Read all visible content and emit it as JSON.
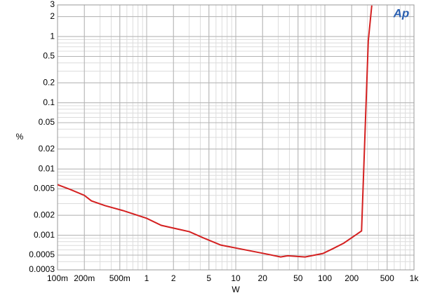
{
  "chart_data": {
    "type": "line",
    "logo": "Ap",
    "x_label": "W",
    "y_label": "%",
    "xscale": "log",
    "yscale": "log",
    "grid": true,
    "xlim": [
      0.1,
      1000
    ],
    "ylim": [
      0.0003,
      3
    ],
    "xticks": [
      {
        "value": 0.1,
        "label": "100m"
      },
      {
        "value": 0.2,
        "label": "200m"
      },
      {
        "value": 0.5,
        "label": "500m"
      },
      1,
      2,
      5,
      10,
      20,
      50,
      100,
      200,
      500,
      {
        "value": 1000,
        "label": "1k"
      }
    ],
    "yticks": [
      0.0003,
      0.0005,
      0.001,
      0.002,
      0.005,
      0.01,
      0.02,
      0.05,
      0.1,
      0.2,
      0.5,
      1,
      2,
      3
    ],
    "x": [
      0.1,
      0.139,
      0.2,
      0.24,
      0.34,
      0.54,
      1,
      1.46,
      3.02,
      4.34,
      6.8,
      12.9,
      22.2,
      31.9,
      38.3,
      60,
      95,
      124,
      163,
      258,
      307,
      336
    ],
    "series": [
      {
        "color": "#d42020",
        "values": [
          0.0058,
          0.0049,
          0.004,
          0.0033,
          0.0028,
          0.00236,
          0.0018,
          0.00141,
          0.00113,
          0.00091,
          0.00071,
          0.0006,
          0.00052,
          0.00047,
          0.00049,
          0.00047,
          0.00053,
          0.00063,
          0.00076,
          0.00116,
          0.863,
          2.94
        ]
      }
    ]
  }
}
